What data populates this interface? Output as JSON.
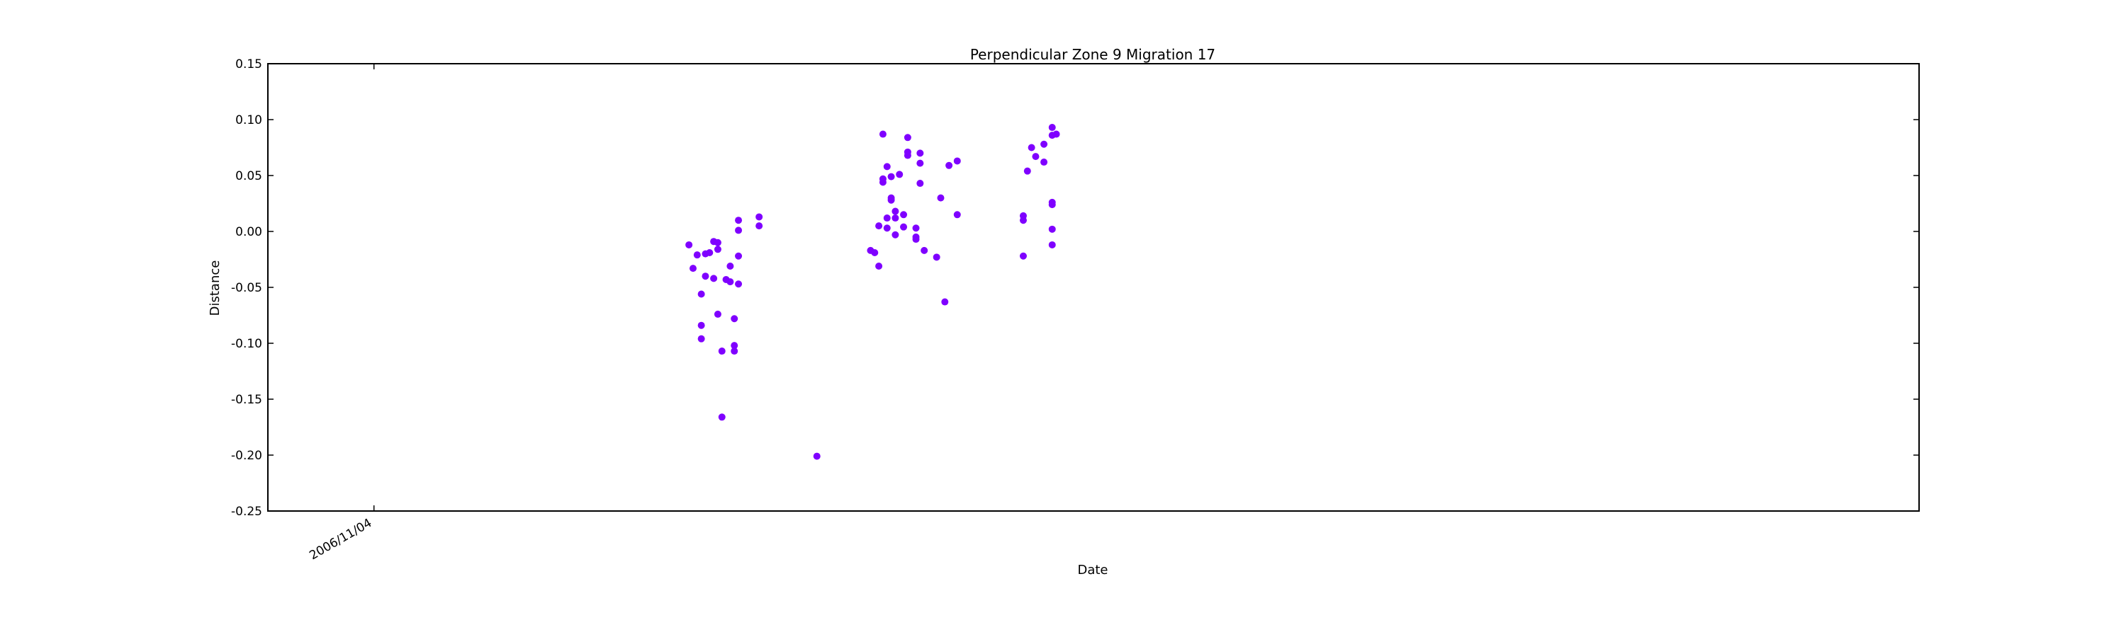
{
  "chart_data": {
    "type": "scatter",
    "title": "Perpendicular Zone 9 Migration 17",
    "xlabel": "Date",
    "ylabel": "Distance",
    "ylim": [
      -0.25,
      0.15
    ],
    "yticks": [
      "0.15",
      "0.10",
      "0.05",
      "0.00",
      "-0.05",
      "-0.10",
      "-0.15",
      "-0.20",
      "-0.25"
    ],
    "xtick_labels": [
      "2006/11/04"
    ],
    "grid": false,
    "marker_color": "#7f00ff",
    "points": [
      {
        "x": 2.62,
        "y": -0.012
      },
      {
        "x": 2.63,
        "y": -0.033
      },
      {
        "x": 2.64,
        "y": -0.021
      },
      {
        "x": 2.65,
        "y": -0.084
      },
      {
        "x": 2.65,
        "y": -0.096
      },
      {
        "x": 2.65,
        "y": -0.056
      },
      {
        "x": 2.66,
        "y": -0.04
      },
      {
        "x": 2.66,
        "y": -0.02
      },
      {
        "x": 2.67,
        "y": -0.019
      },
      {
        "x": 2.68,
        "y": -0.009
      },
      {
        "x": 2.68,
        "y": -0.042
      },
      {
        "x": 2.69,
        "y": -0.01
      },
      {
        "x": 2.69,
        "y": -0.016
      },
      {
        "x": 2.69,
        "y": -0.074
      },
      {
        "x": 2.7,
        "y": -0.166
      },
      {
        "x": 2.7,
        "y": -0.107
      },
      {
        "x": 2.71,
        "y": -0.043
      },
      {
        "x": 2.72,
        "y": -0.045
      },
      {
        "x": 2.72,
        "y": -0.031
      },
      {
        "x": 2.73,
        "y": -0.078
      },
      {
        "x": 2.73,
        "y": -0.102
      },
      {
        "x": 2.73,
        "y": -0.107
      },
      {
        "x": 2.74,
        "y": 0.001
      },
      {
        "x": 2.74,
        "y": 0.01
      },
      {
        "x": 2.74,
        "y": -0.022
      },
      {
        "x": 2.74,
        "y": -0.047
      },
      {
        "x": 2.79,
        "y": 0.013
      },
      {
        "x": 2.79,
        "y": 0.005
      },
      {
        "x": 2.93,
        "y": -0.201
      },
      {
        "x": 3.06,
        "y": -0.017
      },
      {
        "x": 3.07,
        "y": -0.019
      },
      {
        "x": 3.08,
        "y": -0.031
      },
      {
        "x": 3.08,
        "y": 0.005
      },
      {
        "x": 3.09,
        "y": 0.087
      },
      {
        "x": 3.09,
        "y": 0.047
      },
      {
        "x": 3.09,
        "y": 0.044
      },
      {
        "x": 3.1,
        "y": 0.058
      },
      {
        "x": 3.1,
        "y": 0.003
      },
      {
        "x": 3.1,
        "y": 0.012
      },
      {
        "x": 3.11,
        "y": 0.028
      },
      {
        "x": 3.11,
        "y": 0.03
      },
      {
        "x": 3.11,
        "y": 0.049
      },
      {
        "x": 3.12,
        "y": -0.003
      },
      {
        "x": 3.12,
        "y": 0.018
      },
      {
        "x": 3.12,
        "y": 0.012
      },
      {
        "x": 3.13,
        "y": 0.051
      },
      {
        "x": 3.14,
        "y": 0.015
      },
      {
        "x": 3.14,
        "y": 0.004
      },
      {
        "x": 3.15,
        "y": 0.084
      },
      {
        "x": 3.15,
        "y": 0.071
      },
      {
        "x": 3.15,
        "y": 0.068
      },
      {
        "x": 3.17,
        "y": 0.003
      },
      {
        "x": 3.17,
        "y": -0.005
      },
      {
        "x": 3.17,
        "y": -0.007
      },
      {
        "x": 3.18,
        "y": 0.07
      },
      {
        "x": 3.18,
        "y": 0.061
      },
      {
        "x": 3.18,
        "y": 0.043
      },
      {
        "x": 3.19,
        "y": -0.017
      },
      {
        "x": 3.22,
        "y": -0.023
      },
      {
        "x": 3.23,
        "y": 0.03
      },
      {
        "x": 3.24,
        "y": -0.063
      },
      {
        "x": 3.25,
        "y": 0.059
      },
      {
        "x": 3.27,
        "y": 0.063
      },
      {
        "x": 3.27,
        "y": 0.015
      },
      {
        "x": 3.43,
        "y": -0.022
      },
      {
        "x": 3.43,
        "y": 0.014
      },
      {
        "x": 3.43,
        "y": 0.01
      },
      {
        "x": 3.44,
        "y": 0.054
      },
      {
        "x": 3.45,
        "y": 0.075
      },
      {
        "x": 3.46,
        "y": 0.067
      },
      {
        "x": 3.48,
        "y": 0.078
      },
      {
        "x": 3.48,
        "y": 0.062
      },
      {
        "x": 3.5,
        "y": 0.093
      },
      {
        "x": 3.5,
        "y": 0.086
      },
      {
        "x": 3.51,
        "y": 0.087
      },
      {
        "x": 3.5,
        "y": 0.002
      },
      {
        "x": 3.5,
        "y": 0.026
      },
      {
        "x": 3.5,
        "y": 0.024
      },
      {
        "x": 3.5,
        "y": -0.012
      }
    ]
  }
}
